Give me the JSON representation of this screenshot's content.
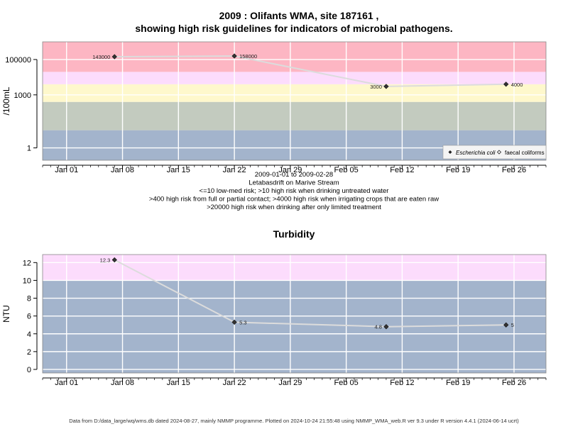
{
  "page": {
    "title_line1": "2009 : Olifants WMA, site 187161 ,",
    "title_line2": "showing high risk guidelines for indicators of microbial pathogens.",
    "footer": "Data from D:/data_large/wq/wms.db dated 2024-08-27, mainly NMMP programme. Plotted on 2024-10-24 21:55:48 using NMMP_WMA_web.R ver 9.3 under R version 4.4.1 (2024-06-14 ucrt)"
  },
  "chart_data": [
    {
      "type": "scatter",
      "title": "",
      "xlabel": "",
      "ylabel": "/100mL",
      "y_scale": "log10",
      "ylim": [
        0.2,
        1000000
      ],
      "xlim": [
        "2008-12-29",
        "2009-03-02"
      ],
      "x_ticks": [
        "2009-01-01",
        "2009-01-08",
        "2009-01-15",
        "2009-01-22",
        "2009-01-29",
        "2009-02-05",
        "2009-02-12",
        "2009-02-19",
        "2009-02-26"
      ],
      "x_tick_labels": [
        "Jan 01",
        "Jan 08",
        "Jan 15",
        "Jan 22",
        "Jan 29",
        "Feb 05",
        "Feb 12",
        "Feb 19",
        "Feb 26"
      ],
      "y_ticks": [
        1,
        1000,
        100000
      ],
      "y_tick_labels": [
        "1",
        "1000",
        "100000"
      ],
      "bands": [
        {
          "from": 0.2,
          "to": 10,
          "color": "#a3b4cc"
        },
        {
          "from": 10,
          "to": 400,
          "color": "#c3cbbf"
        },
        {
          "from": 400,
          "to": 4000,
          "color": "#fef8cc"
        },
        {
          "from": 4000,
          "to": 20000,
          "color": "#fcdcfc"
        },
        {
          "from": 20000,
          "to": 1000000,
          "color": "#fdb6c3"
        }
      ],
      "series": [
        {
          "name": "Escherichia coli",
          "points": [
            {
              "x": "2009-01-07",
              "y": 143000,
              "label": "143000"
            },
            {
              "x": "2009-01-22",
              "y": 158000,
              "label": "158000"
            },
            {
              "x": "2009-02-10",
              "y": 3000,
              "label": "3000"
            },
            {
              "x": "2009-02-25",
              "y": 4000,
              "label": "4000"
            }
          ]
        },
        {
          "name": "faecal coliforms",
          "points": []
        }
      ],
      "legend": {
        "position": "bottom-right",
        "entries": [
          "Escherichia coli",
          "faecal coliforms"
        ]
      },
      "notes": [
        "2009-01-01 to 2009-02-28",
        "Letabasdrift on Marive Stream",
        "<=10 low-med risk; >10 high risk when drinking untreated water",
        ">400 high risk from full or partial contact; >4000 high risk when irrigating crops that are eaten raw",
        ">20000 high risk when drinking after only limited treatment"
      ],
      "grid": true
    },
    {
      "type": "scatter",
      "title": "Turbidity",
      "xlabel": "",
      "ylabel": "NTU",
      "ylim": [
        -0.4,
        12.9
      ],
      "xlim": [
        "2008-12-29",
        "2009-03-02"
      ],
      "x_ticks": [
        "2009-01-01",
        "2009-01-08",
        "2009-01-15",
        "2009-01-22",
        "2009-01-29",
        "2009-02-05",
        "2009-02-12",
        "2009-02-19",
        "2009-02-26"
      ],
      "x_tick_labels": [
        "Jan 01",
        "Jan 08",
        "Jan 15",
        "Jan 22",
        "Jan 29",
        "Feb 05",
        "Feb 12",
        "Feb 19",
        "Feb 26"
      ],
      "y_ticks": [
        0,
        2,
        4,
        6,
        8,
        10,
        12
      ],
      "y_tick_labels": [
        "0",
        "2",
        "4",
        "6",
        "8",
        "10",
        "12"
      ],
      "bands": [
        {
          "from": -0.4,
          "to": 10,
          "color": "#a3b4cc"
        },
        {
          "from": 10,
          "to": 12.9,
          "color": "#fcdcfc"
        }
      ],
      "series": [
        {
          "name": "",
          "points": [
            {
              "x": "2009-01-07",
              "y": 12.3,
              "label": "12.3"
            },
            {
              "x": "2009-01-22",
              "y": 5.3,
              "label": "5.3"
            },
            {
              "x": "2009-02-10",
              "y": 4.8,
              "label": "4.8"
            },
            {
              "x": "2009-02-25",
              "y": 5,
              "label": "5"
            }
          ]
        }
      ],
      "grid": true
    }
  ]
}
